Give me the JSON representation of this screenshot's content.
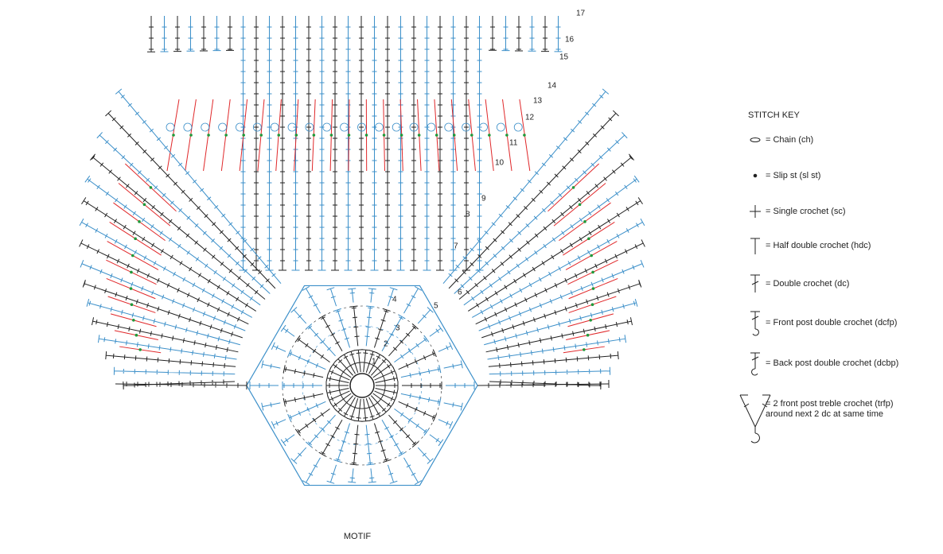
{
  "diagram": {
    "round_labels": [
      "1",
      "2",
      "3",
      "4",
      "5",
      "6",
      "7",
      "8",
      "9",
      "10",
      "11",
      "12",
      "13",
      "14",
      "15",
      "16",
      "17"
    ],
    "caption": "MOTIF",
    "key": {
      "title": "STITCH KEY",
      "items": [
        {
          "lines": [
            "= Chain (ch)"
          ]
        },
        {
          "lines": [
            "= Slip st (sl st)"
          ]
        },
        {
          "lines": [
            "= Single crochet (sc)"
          ]
        },
        {
          "lines": [
            "= Half double crochet (hdc)"
          ]
        },
        {
          "lines": [
            "= Double crochet (dc)"
          ]
        },
        {
          "lines": [
            "= Front post double crochet (dcfp)"
          ]
        },
        {
          "lines": [
            "= Back post double crochet (dcbp)"
          ]
        },
        {
          "lines": [
            "= 2 front post treble crochet (trfp)",
            "around next 2 dc at same time"
          ]
        }
      ]
    }
  }
}
